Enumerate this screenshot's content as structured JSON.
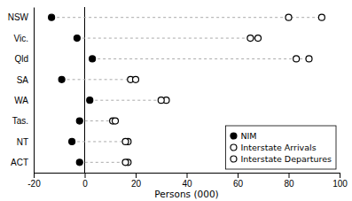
{
  "chart_data": {
    "type": "dot",
    "categories": [
      "NSW",
      "Vic.",
      "Qld",
      "SA",
      "WA",
      "Tas.",
      "NT",
      "ACT"
    ],
    "series": [
      {
        "name": "NIM",
        "color": "#000000",
        "marker": "filled-circle",
        "values": [
          -13,
          -3,
          3,
          -9,
          2,
          -2,
          -5,
          -2
        ]
      },
      {
        "name": "Interstate Arrivals",
        "color": "#000000",
        "marker": "open-circle",
        "values": [
          80,
          65,
          83,
          18,
          32,
          11,
          17,
          17
        ]
      },
      {
        "name": "Interstate Departures",
        "color": "#000000",
        "marker": "open-circle",
        "values": [
          93,
          68,
          88,
          20,
          30,
          12,
          16,
          16
        ]
      }
    ],
    "xlabel": "Persons (000)",
    "xlim": [
      -20,
      100
    ],
    "xticks": [
      -20,
      0,
      20,
      40,
      60,
      80,
      100
    ],
    "grid": false,
    "legend": "lower right"
  }
}
